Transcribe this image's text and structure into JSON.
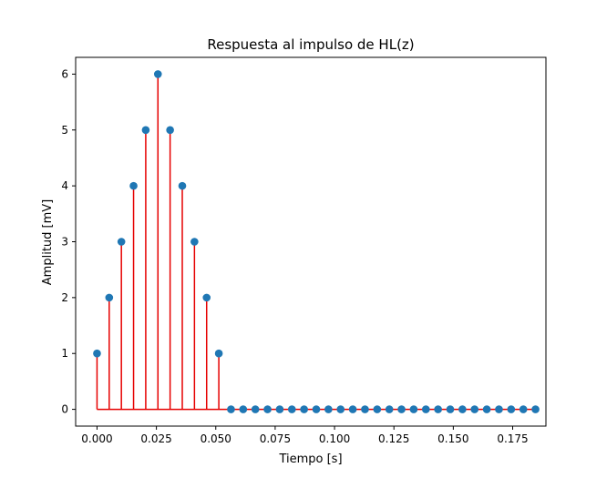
{
  "chart_data": {
    "type": "stem",
    "title": "Respuesta al impulso de HL(z)",
    "xlabel": "Tiempo [s]",
    "ylabel": "Amplitud [mV]",
    "xlim": [
      -0.009,
      0.189
    ],
    "ylim": [
      -0.3,
      6.3
    ],
    "xticks": [
      0.0,
      0.025,
      0.05,
      0.075,
      0.1,
      0.125,
      0.15,
      0.175
    ],
    "xtick_labels": [
      "0.000",
      "0.025",
      "0.050",
      "0.075",
      "0.100",
      "0.125",
      "0.150",
      "0.175"
    ],
    "yticks": [
      0,
      1,
      2,
      3,
      4,
      5,
      6
    ],
    "ytick_labels": [
      "0",
      "1",
      "2",
      "3",
      "4",
      "5",
      "6"
    ],
    "x_start": 0.0,
    "x_step": 0.005128,
    "values": [
      1,
      2,
      3,
      4,
      5,
      6,
      5,
      4,
      3,
      2,
      1,
      0,
      0,
      0,
      0,
      0,
      0,
      0,
      0,
      0,
      0,
      0,
      0,
      0,
      0,
      0,
      0,
      0,
      0,
      0,
      0,
      0,
      0,
      0,
      0,
      0,
      0
    ],
    "colors": {
      "stem": "#e60000",
      "marker": "#1f77b4",
      "baseline": "#e60000"
    },
    "grid": false
  }
}
